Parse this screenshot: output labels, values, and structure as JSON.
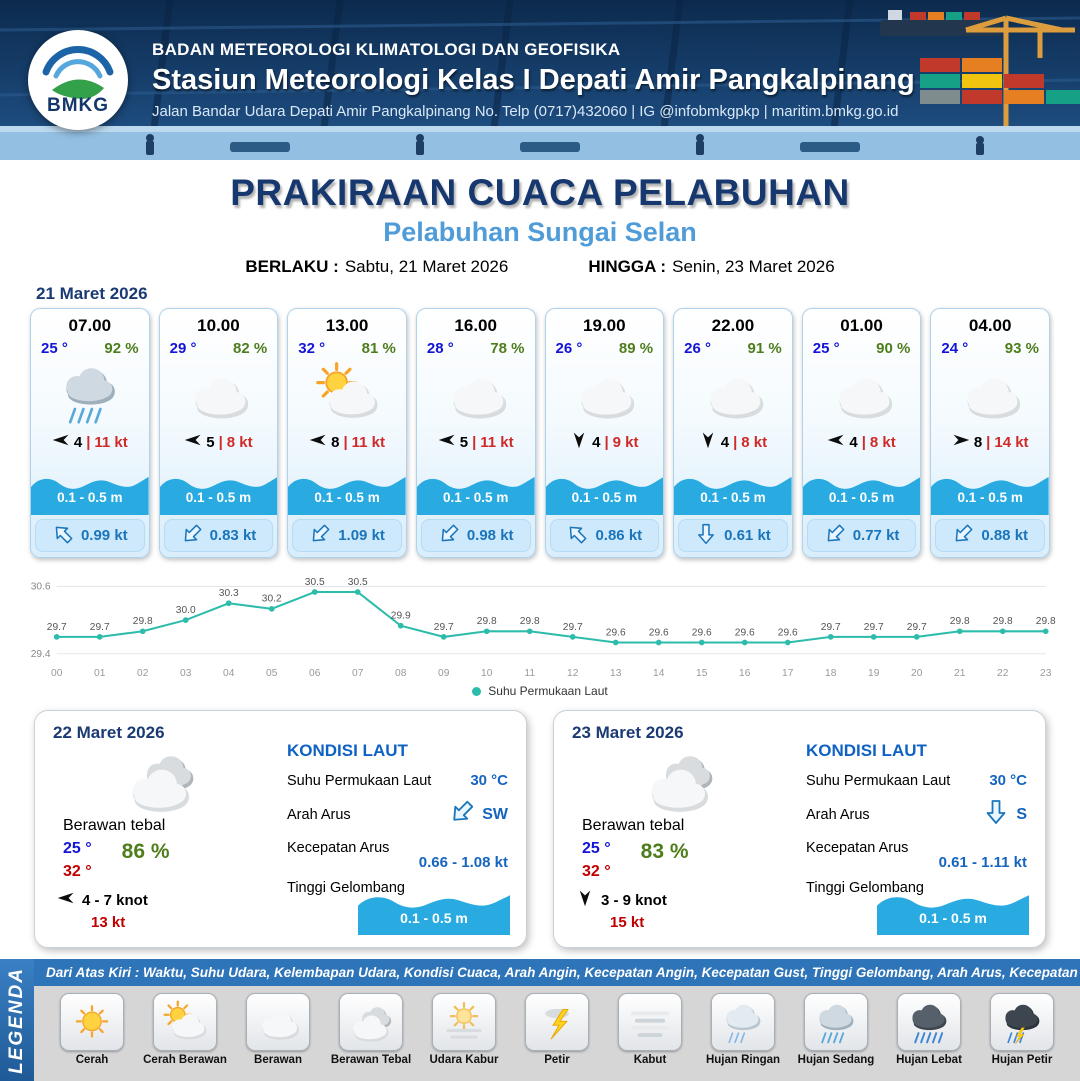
{
  "header": {
    "logo_text": "BMKG",
    "agency": "BADAN METEOROLOGI KLIMATOLOGI DAN GEOFISIKA",
    "station": "Stasiun Meteorologi Kelas I Depati Amir Pangkalpinang",
    "address": "Jalan Bandar Udara Depati Amir Pangkalpinang No. Telp (0717)432060 | IG @infobmkgpkp | maritim.bmkg.go.id"
  },
  "title": {
    "main": "PRAKIRAAN CUACA PELABUHAN",
    "subtitle": "Pelabuhan Sungai Selan",
    "berlaku_label": "BERLAKU :",
    "berlaku_value": "Sabtu, 21 Maret 2026",
    "hingga_label": "HINGGA :",
    "hingga_value": "Senin, 23 Maret 2026"
  },
  "misc": {
    "separator": "|"
  },
  "forecast": {
    "date": "21 Maret 2026",
    "cards": [
      {
        "time": "07.00",
        "temp": "25 °",
        "rh": "92 %",
        "icon": "hujan-sedang",
        "wind_dir": "W",
        "wind": "4",
        "gust": "11 kt",
        "wave": "0.1 - 0.5 m",
        "current_dir": "NW",
        "current": "0.99 kt"
      },
      {
        "time": "10.00",
        "temp": "29 °",
        "rh": "82 %",
        "icon": "berawan",
        "wind_dir": "W",
        "wind": "5",
        "gust": "8 kt",
        "wave": "0.1 - 0.5 m",
        "current_dir": "SW",
        "current": "0.83 kt"
      },
      {
        "time": "13.00",
        "temp": "32 °",
        "rh": "81 %",
        "icon": "cerah-berawan",
        "wind_dir": "W",
        "wind": "8",
        "gust": "11 kt",
        "wave": "0.1 - 0.5 m",
        "current_dir": "SW",
        "current": "1.09 kt"
      },
      {
        "time": "16.00",
        "temp": "28 °",
        "rh": "78 %",
        "icon": "berawan",
        "wind_dir": "W",
        "wind": "5",
        "gust": "11 kt",
        "wave": "0.1 - 0.5 m",
        "current_dir": "SW",
        "current": "0.98 kt"
      },
      {
        "time": "19.00",
        "temp": "26 °",
        "rh": "89 %",
        "icon": "berawan",
        "wind_dir": "S",
        "wind": "4",
        "gust": "9 kt",
        "wave": "0.1 - 0.5 m",
        "current_dir": "NW",
        "current": "0.86 kt"
      },
      {
        "time": "22.00",
        "temp": "26 °",
        "rh": "91 %",
        "icon": "berawan",
        "wind_dir": "S",
        "wind": "4",
        "gust": "8 kt",
        "wave": "0.1 - 0.5 m",
        "current_dir": "S",
        "current": "0.61 kt"
      },
      {
        "time": "01.00",
        "temp": "25 °",
        "rh": "90 %",
        "icon": "berawan",
        "wind_dir": "W",
        "wind": "4",
        "gust": "8 kt",
        "wave": "0.1 - 0.5 m",
        "current_dir": "SW",
        "current": "0.77 kt"
      },
      {
        "time": "04.00",
        "temp": "24 °",
        "rh": "93 %",
        "icon": "berawan",
        "wind_dir": "E",
        "wind": "8",
        "gust": "14 kt",
        "wave": "0.1 - 0.5 m",
        "current_dir": "SW",
        "current": "0.88 kt"
      }
    ]
  },
  "chart_data": {
    "type": "line",
    "x": [
      "00",
      "01",
      "02",
      "03",
      "04",
      "05",
      "06",
      "07",
      "08",
      "09",
      "10",
      "11",
      "12",
      "13",
      "14",
      "15",
      "16",
      "17",
      "18",
      "19",
      "20",
      "21",
      "22",
      "23"
    ],
    "values": [
      29.7,
      29.7,
      29.8,
      30.0,
      30.3,
      30.2,
      30.5,
      30.5,
      29.9,
      29.7,
      29.8,
      29.8,
      29.7,
      29.6,
      29.6,
      29.6,
      29.6,
      29.6,
      29.7,
      29.7,
      29.7,
      29.8,
      29.8,
      29.8
    ],
    "ylim": [
      29.4,
      30.6
    ],
    "legend": "Suhu Permukaan Laut",
    "line_color": "#2dbcab",
    "grid": true,
    "legend_position": "bottom-center"
  },
  "day_cards": [
    {
      "date": "22 Maret 2026",
      "icon": "berawan-tebal",
      "condition": "Berawan tebal",
      "temp_min": "25 °",
      "temp_max": "32 °",
      "rh": "86 %",
      "wind_dir": "W",
      "wind_range": "4 - 7 knot",
      "gust": "13 kt",
      "sea_title": "KONDISI LAUT",
      "sst_label": "Suhu Permukaan Laut",
      "sst": "30 °C",
      "current_dir_label": "Arah Arus",
      "current_dir": "SW",
      "current_speed_label": "Kecepatan Arus",
      "current_speed": "0.66 - 1.08 kt",
      "wave_label": "Tinggi Gelombang",
      "wave": "0.1 - 0.5 m"
    },
    {
      "date": "23 Maret 2026",
      "icon": "berawan-tebal",
      "condition": "Berawan tebal",
      "temp_min": "25 °",
      "temp_max": "32 °",
      "rh": "83 %",
      "wind_dir": "S",
      "wind_range": "3 - 9 knot",
      "gust": "15 kt",
      "sea_title": "KONDISI LAUT",
      "sst_label": "Suhu Permukaan Laut",
      "sst": "30 °C",
      "current_dir_label": "Arah Arus",
      "current_dir": "S",
      "current_speed_label": "Kecepatan Arus",
      "current_speed": "0.61 - 1.11 kt",
      "wave_label": "Tinggi Gelombang",
      "wave": "0.1 - 0.5 m"
    }
  ],
  "legend": {
    "title": "LEGENDA",
    "description": "Dari Atas Kiri : Waktu, Suhu Udara, Kelembapan Udara, Kondisi Cuaca, Arah Angin, Kecepatan Angin, Kecepatan Gust, Tinggi Gelombang, Arah Arus, Kecepatan Arus",
    "items": [
      {
        "label": "Cerah",
        "icon": "cerah"
      },
      {
        "label": "Cerah Berawan",
        "icon": "cerah-berawan"
      },
      {
        "label": "Berawan",
        "icon": "berawan"
      },
      {
        "label": "Berawan Tebal",
        "icon": "berawan-tebal"
      },
      {
        "label": "Udara Kabur",
        "icon": "udara-kabur"
      },
      {
        "label": "Petir",
        "icon": "petir"
      },
      {
        "label": "Kabut",
        "icon": "kabut"
      },
      {
        "label": "Hujan Ringan",
        "icon": "hujan-ringan"
      },
      {
        "label": "Hujan Sedang",
        "icon": "hujan-sedang"
      },
      {
        "label": "Hujan Lebat",
        "icon": "hujan-lebat"
      },
      {
        "label": "Hujan Petir",
        "icon": "hujan-petir"
      }
    ]
  },
  "colors": {
    "navy": "#16386f",
    "subtitle_blue": "#4f9cd9",
    "wave_blue": "#29abe2",
    "temp_blue": "#1414d9",
    "humidity_green": "#4e7e1c",
    "alert_red": "#cf2a27",
    "current_blue": "#1b75bb",
    "chart_teal": "#2dbcab",
    "legend_bar_blue": "#2e74b8"
  }
}
